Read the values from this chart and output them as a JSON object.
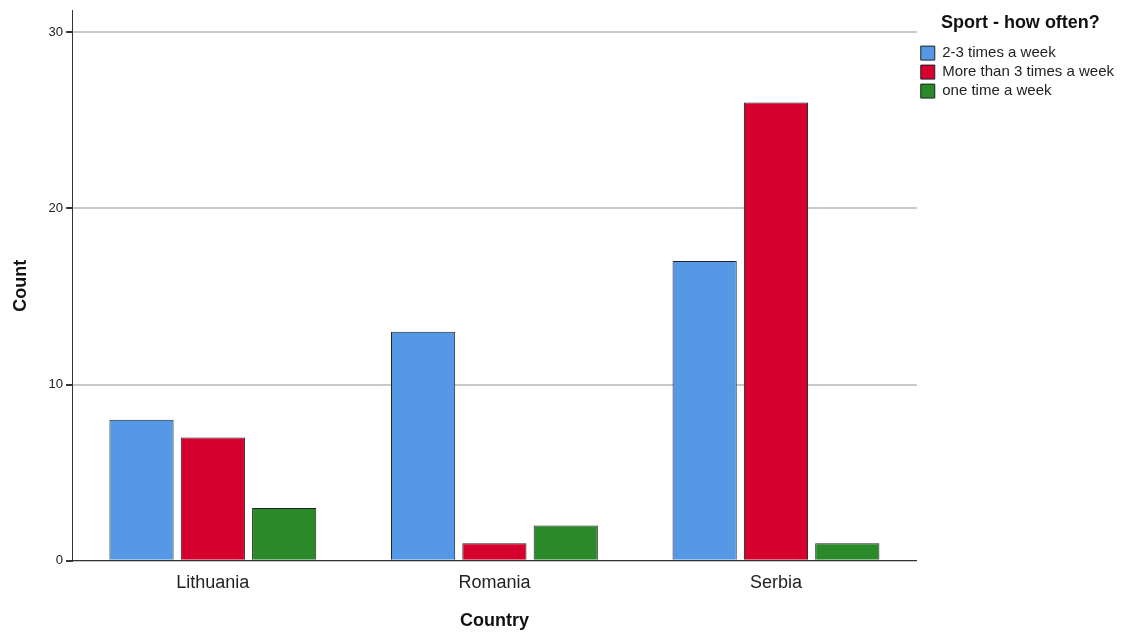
{
  "chart_data": {
    "type": "bar",
    "xlabel": "Country",
    "ylabel": "Count",
    "legend_title": "Sport - how often?",
    "categories": [
      "Lithuania",
      "Romania",
      "Serbia"
    ],
    "series": [
      {
        "name": "2-3 times a week",
        "color": "#5599e6",
        "values": [
          8,
          13,
          17
        ]
      },
      {
        "name": "More than 3 times a week",
        "color": "#d6002f",
        "values": [
          7,
          1,
          26
        ]
      },
      {
        "name": "one time a week",
        "color": "#2a8a2a",
        "values": [
          3,
          2,
          1
        ]
      }
    ],
    "ylim": [
      0,
      31.2
    ],
    "yticks": [
      0,
      10,
      20,
      30
    ],
    "grid": "y",
    "legend": "top right"
  }
}
